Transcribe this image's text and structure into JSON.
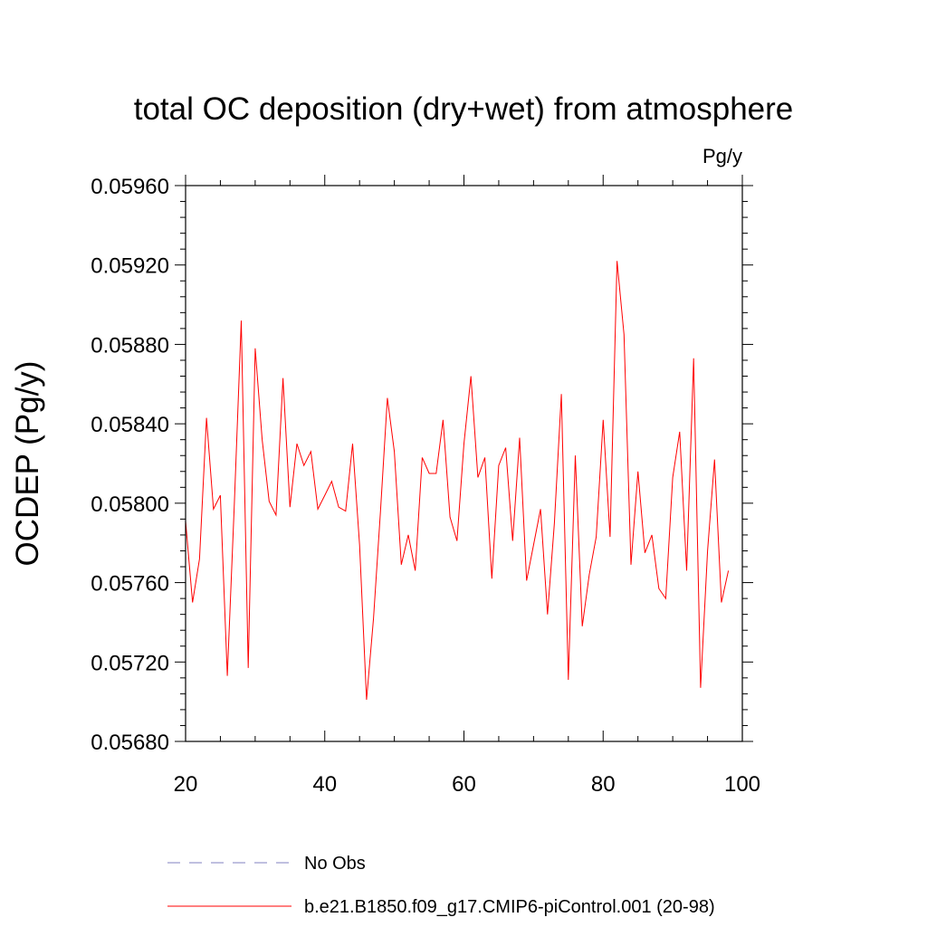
{
  "chart_data": {
    "type": "line",
    "title": "total OC deposition (dry+wet) from atmosphere",
    "units_label": "Pg/y",
    "xlabel": "",
    "ylabel": "OCDEP  (Pg/y)",
    "xlim": [
      20,
      100
    ],
    "ylim": [
      0.0568,
      0.0596
    ],
    "xticks": [
      "20",
      "40",
      "60",
      "80",
      "100"
    ],
    "yticks": [
      "0.05680",
      "0.05720",
      "0.05760",
      "0.05800",
      "0.05840",
      "0.05880",
      "0.05920",
      "0.05960"
    ],
    "grid": false,
    "legend_position": "bottom",
    "series": [
      {
        "name": "No Obs",
        "color": "#8080c0",
        "style": "dashed",
        "x": [],
        "y": []
      },
      {
        "name": "b.e21.B1850.f09_g17.CMIP6-piControl.001 (20-98)",
        "color": "#ff0000",
        "style": "solid",
        "x": [
          20,
          21,
          22,
          23,
          24,
          25,
          26,
          27,
          28,
          29,
          30,
          31,
          32,
          33,
          34,
          35,
          36,
          37,
          38,
          39,
          40,
          41,
          42,
          43,
          44,
          45,
          46,
          47,
          48,
          49,
          50,
          51,
          52,
          53,
          54,
          55,
          56,
          57,
          58,
          59,
          60,
          61,
          62,
          63,
          64,
          65,
          66,
          67,
          68,
          69,
          70,
          71,
          72,
          73,
          74,
          75,
          76,
          77,
          78,
          79,
          80,
          81,
          82,
          83,
          84,
          85,
          86,
          87,
          88,
          89,
          90,
          91,
          92,
          93,
          94,
          95,
          96,
          97,
          98
        ],
        "y": [
          0.05791,
          0.0575,
          0.05772,
          0.05843,
          0.05797,
          0.05804,
          0.05713,
          0.05799,
          0.05892,
          0.05717,
          0.05878,
          0.05832,
          0.05801,
          0.05794,
          0.05863,
          0.05798,
          0.0583,
          0.05819,
          0.05826,
          0.05797,
          0.05804,
          0.05811,
          0.05798,
          0.05796,
          0.0583,
          0.05779,
          0.05701,
          0.05742,
          0.05796,
          0.05853,
          0.05826,
          0.05769,
          0.05784,
          0.05766,
          0.05823,
          0.05815,
          0.05815,
          0.05842,
          0.05793,
          0.05781,
          0.0583,
          0.05864,
          0.05813,
          0.05823,
          0.05762,
          0.05819,
          0.05828,
          0.05781,
          0.05833,
          0.05761,
          0.05779,
          0.05797,
          0.05744,
          0.0579,
          0.05855,
          0.05711,
          0.05824,
          0.05738,
          0.05764,
          0.05783,
          0.05842,
          0.05783,
          0.05922,
          0.05885,
          0.05769,
          0.05816,
          0.05775,
          0.05784,
          0.05757,
          0.05752,
          0.05813,
          0.05836,
          0.05766,
          0.05873,
          0.05707,
          0.05776,
          0.05822,
          0.0575,
          0.05766
        ]
      }
    ]
  }
}
